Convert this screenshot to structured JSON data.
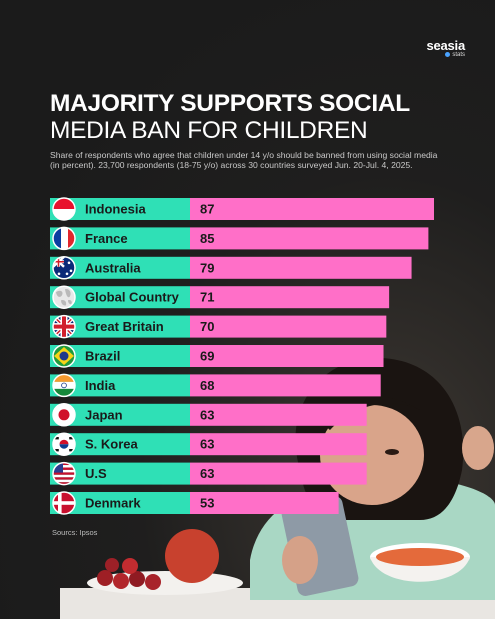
{
  "brand": {
    "name": "seasia",
    "sub": "stats"
  },
  "title_line1": "MAJORITY SUPPORTS SOCIAL",
  "title_line2": "MEDIA BAN FOR CHILDREN",
  "subtitle": "Share of respondents who agree that children under 14 y/o should be banned from using social media (in percent). 23,700 respondents (18-75 y/o) across 30 countries surveyed Jun. 20-Jul. 4, 2025.",
  "source": "Sourcs: Ipsos",
  "colors": {
    "label_bg": "#2fe0b6",
    "bar": "#ff6fc8",
    "background": "#1b1b1b"
  },
  "chart_data": {
    "type": "bar",
    "orientation": "horizontal",
    "categories": [
      "Indonesia",
      "France",
      "Australia",
      "Global Country",
      "Great Britain",
      "Brazil",
      "India",
      "Japan",
      "S. Korea",
      "U.S",
      "Denmark"
    ],
    "values": [
      87,
      85,
      79,
      71,
      70,
      69,
      68,
      63,
      63,
      63,
      53
    ],
    "flags": [
      "indonesia-flag-icon",
      "france-flag-icon",
      "australia-flag-icon",
      "globe-icon",
      "uk-flag-icon",
      "brazil-flag-icon",
      "india-flag-icon",
      "japan-flag-icon",
      "korea-flag-icon",
      "usa-flag-icon",
      "denmark-flag-icon"
    ],
    "unit": "percent",
    "xlim": [
      0,
      87
    ],
    "grid": false,
    "legend": "none"
  }
}
